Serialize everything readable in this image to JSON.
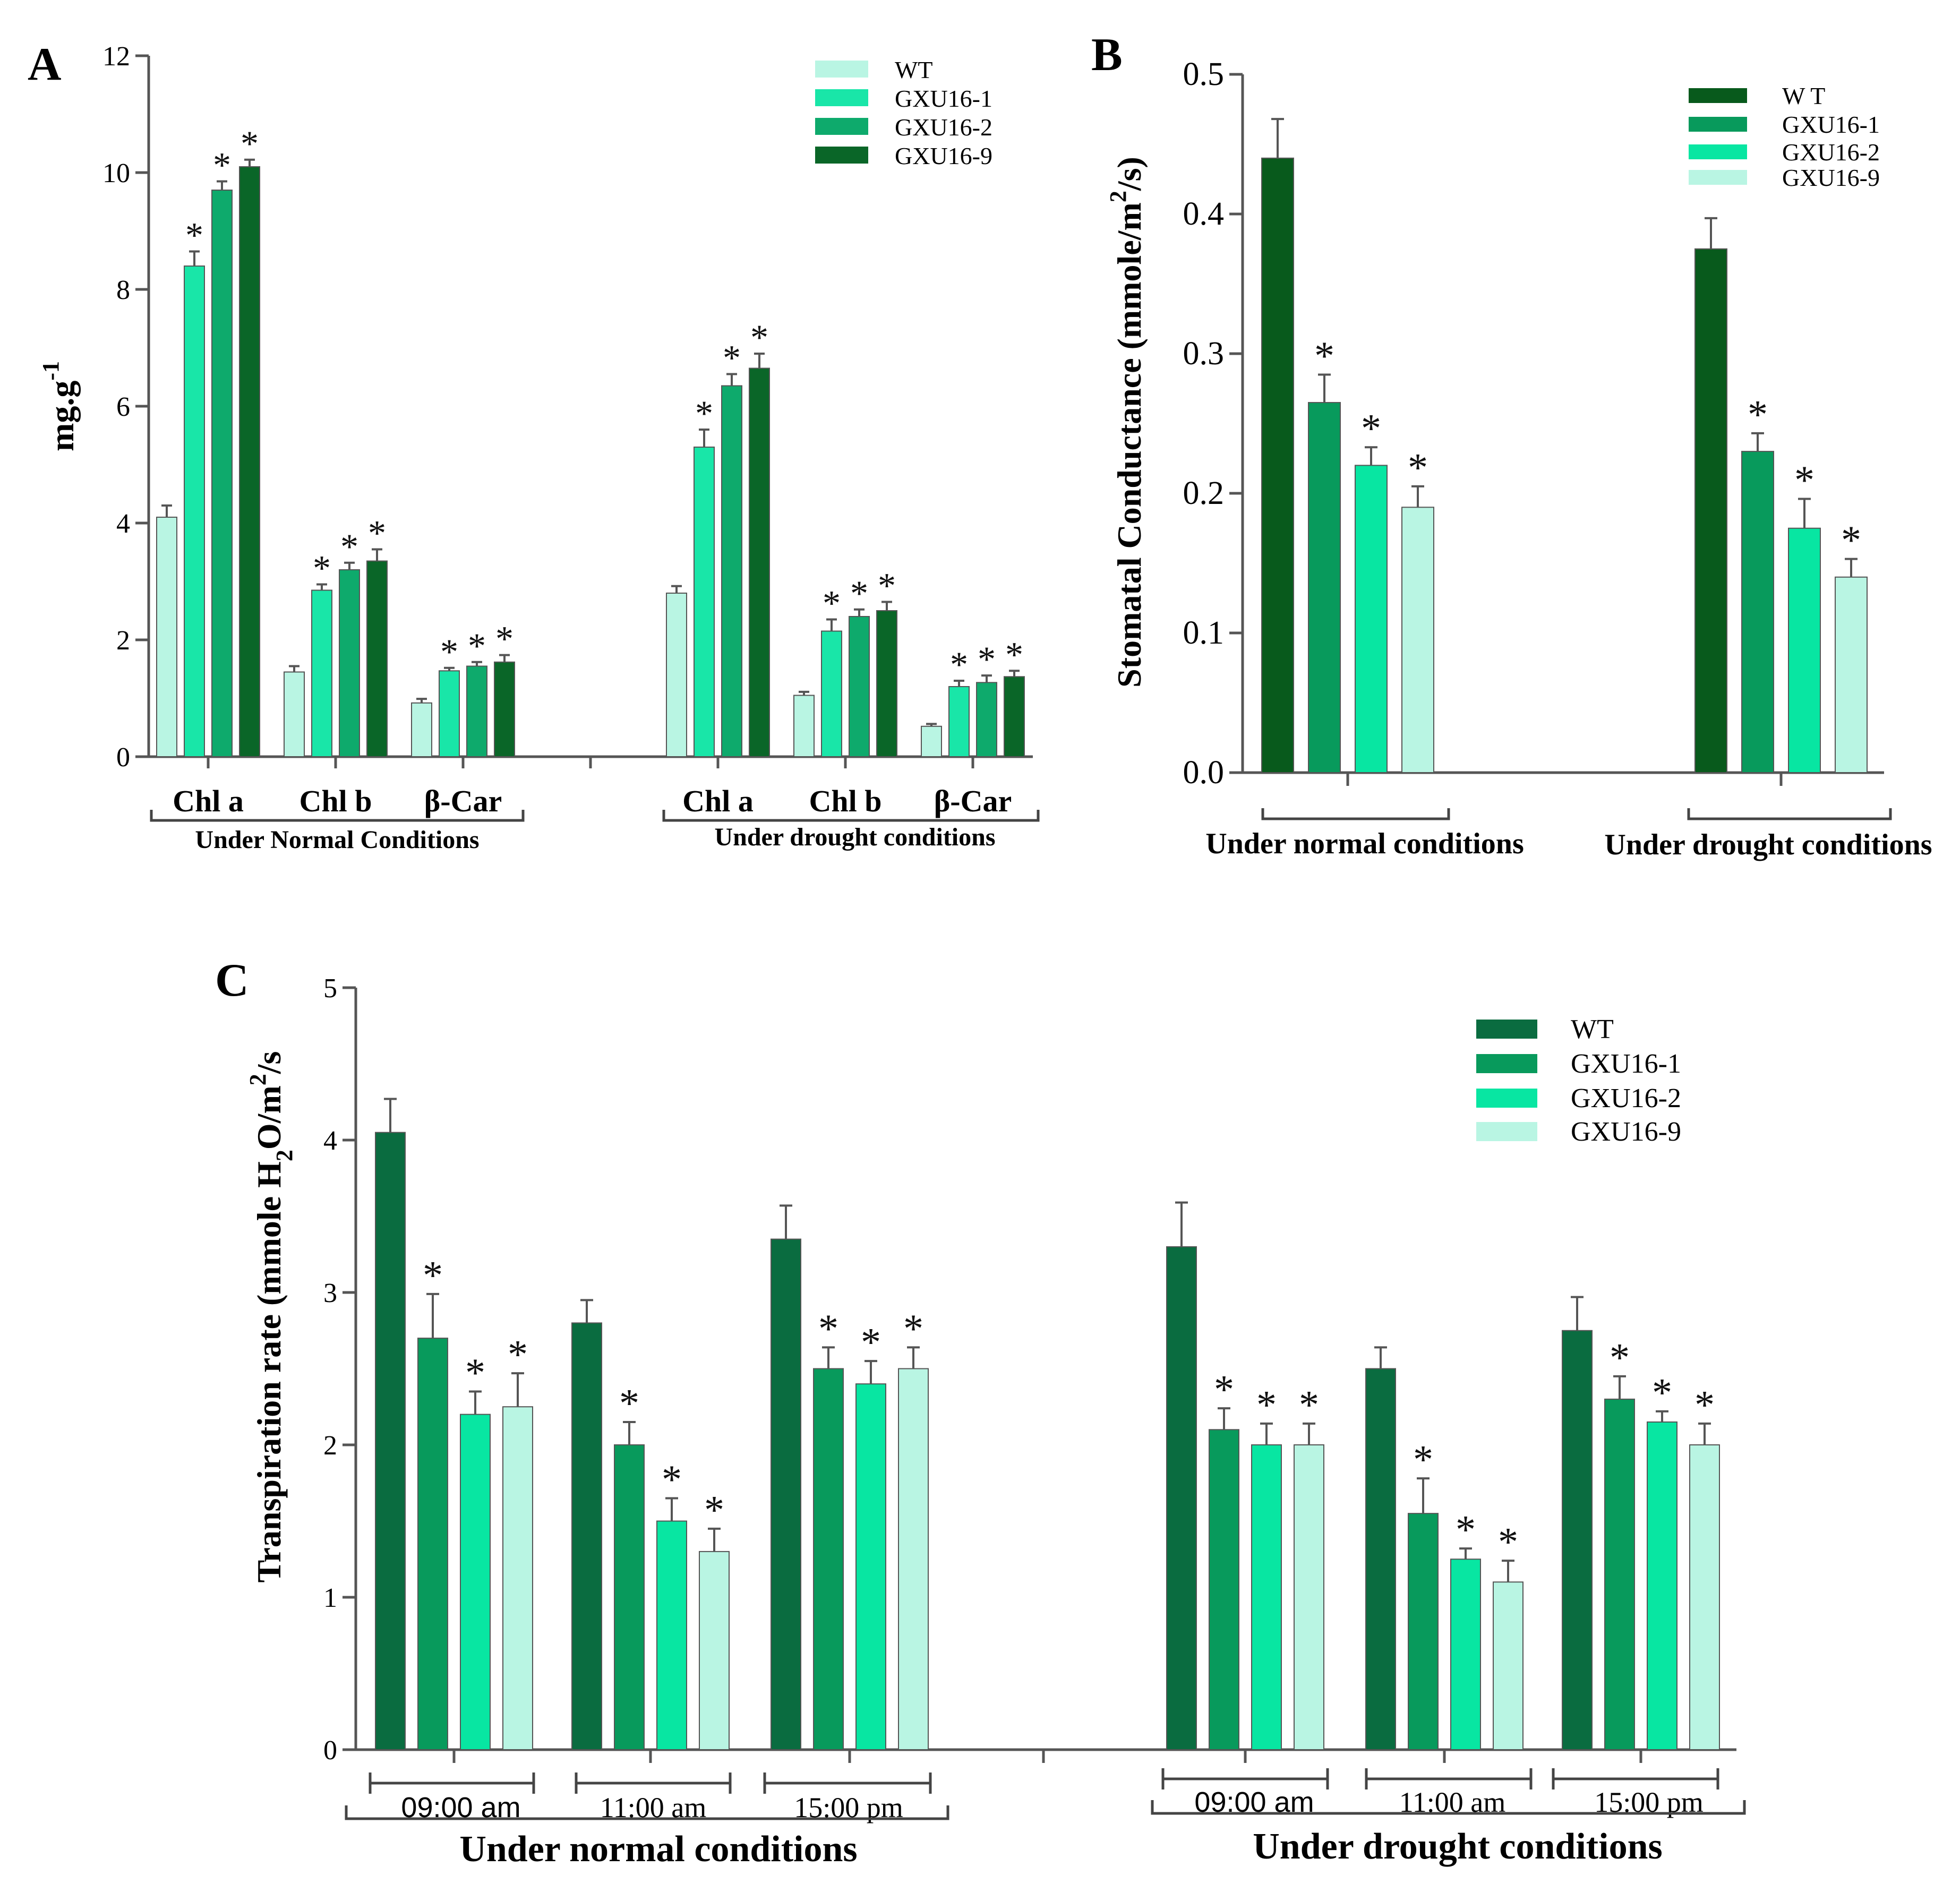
{
  "colors": {
    "wt_A": "#b9f5e3",
    "g1_A": "#19e6a8",
    "g2_A": "#0eaa6c",
    "g9_A": "#0a6628",
    "dark": "#085a1c",
    "mid": "#089a5c",
    "bright": "#08e6a2",
    "pale": "#b9f5e3",
    "wt_C": "#0a6c40"
  },
  "panels": [
    {
      "panel_label": "A",
      "ylabel": "mg.g",
      "ylabel_sup": "-1",
      "yticks": [
        "0",
        "2",
        "4",
        "6",
        "8",
        "10",
        "12"
      ],
      "legend": [
        "WT",
        "GXU16-1",
        "GXU16-2",
        "GXU16-9"
      ],
      "subgroups": [
        "Chl a",
        "Chl b",
        "β-Car",
        "Chl a",
        "Chl b",
        "β-Car"
      ],
      "groups": [
        "Under Normal Conditions",
        "Under drought conditions"
      ]
    },
    {
      "panel_label": "B",
      "ylabel": "Stomatal Conductance (mmole/m",
      "ylabel_sup": "2",
      "ylabel_tail": "/s)",
      "yticks": [
        "0.0",
        "0.1",
        "0.2",
        "0.3",
        "0.4",
        "0.5"
      ],
      "legend": [
        "W T",
        "GXU16-1",
        "GXU16-2",
        "GXU16-9"
      ],
      "groups": [
        "Under normal conditions",
        "Under drought conditions"
      ]
    },
    {
      "panel_label": "C",
      "ylabel": "Transpiration rate (mmole H",
      "ylabel_sub": "2",
      "ylabel_mid": "O/m",
      "ylabel_sup": "2",
      "ylabel_tail": "/s",
      "yticks": [
        "0",
        "1",
        "2",
        "3",
        "4",
        "5"
      ],
      "legend": [
        "WT",
        "GXU16-1",
        "GXU16-2",
        "GXU16-9"
      ],
      "subgroups": [
        "09:00 am",
        "11:00 am",
        "15:00 pm",
        "09:00 am",
        "11:00 am",
        "15:00 pm"
      ],
      "groups": [
        "Under normal conditions",
        "Under drought conditions"
      ]
    }
  ],
  "chart_data": [
    {
      "type": "bar",
      "ylim": [
        0,
        12
      ],
      "categories": [
        "Chl a (Under Normal Conditions)",
        "Chl b (Under Normal Conditions)",
        "β-Car (Under Normal Conditions)",
        "Chl a (Under drought conditions)",
        "Chl b (Under drought conditions)",
        "β-Car (Under drought conditions)"
      ],
      "series": [
        {
          "name": "WT",
          "values": [
            4.1,
            1.45,
            0.92,
            2.8,
            1.05,
            0.52
          ],
          "errors": [
            0.2,
            0.1,
            0.07,
            0.12,
            0.06,
            0.04
          ]
        },
        {
          "name": "GXU16-1",
          "values": [
            8.4,
            2.85,
            1.47,
            5.3,
            2.15,
            1.2
          ],
          "errors": [
            0.25,
            0.1,
            0.05,
            0.3,
            0.2,
            0.1
          ]
        },
        {
          "name": "GXU16-2",
          "values": [
            9.7,
            3.2,
            1.55,
            6.35,
            2.4,
            1.27
          ],
          "errors": [
            0.15,
            0.12,
            0.07,
            0.2,
            0.12,
            0.12
          ]
        },
        {
          "name": "GXU16-9",
          "values": [
            10.1,
            3.35,
            1.62,
            6.65,
            2.5,
            1.37
          ],
          "errors": [
            0.12,
            0.2,
            0.12,
            0.25,
            0.15,
            0.1
          ]
        }
      ],
      "significant": [
        "",
        "*",
        "*",
        "*"
      ]
    },
    {
      "type": "bar",
      "ylim": [
        0,
        0.5
      ],
      "categories": [
        "Under normal conditions",
        "Under drought conditions"
      ],
      "series": [
        {
          "name": "W T",
          "values": [
            0.44,
            0.375
          ],
          "errors": [
            0.028,
            0.022
          ]
        },
        {
          "name": "GXU16-1",
          "values": [
            0.265,
            0.23
          ],
          "errors": [
            0.02,
            0.013
          ]
        },
        {
          "name": "GXU16-2",
          "values": [
            0.22,
            0.175
          ],
          "errors": [
            0.013,
            0.021
          ]
        },
        {
          "name": "GXU16-9",
          "values": [
            0.19,
            0.14
          ],
          "errors": [
            0.015,
            0.013
          ]
        }
      ],
      "significant": [
        "",
        "*",
        "*",
        "*"
      ]
    },
    {
      "type": "bar",
      "ylim": [
        0,
        5
      ],
      "categories": [
        "09:00 am (Under normal conditions)",
        "11:00 am (Under normal conditions)",
        "15:00 pm (Under normal conditions)",
        "09:00 am (Under drought conditions)",
        "11:00 am (Under drought conditions)",
        "15:00 pm (Under drought conditions)"
      ],
      "series": [
        {
          "name": "WT",
          "values": [
            4.05,
            2.8,
            3.35,
            3.3,
            2.5,
            2.75
          ],
          "errors": [
            0.22,
            0.15,
            0.22,
            0.29,
            0.14,
            0.22
          ]
        },
        {
          "name": "GXU16-1",
          "values": [
            2.7,
            2.0,
            2.5,
            2.1,
            1.55,
            2.3
          ],
          "errors": [
            0.29,
            0.15,
            0.14,
            0.14,
            0.23,
            0.15
          ]
        },
        {
          "name": "GXU16-2",
          "values": [
            2.2,
            1.5,
            2.4,
            2.0,
            1.25,
            2.15
          ],
          "errors": [
            0.15,
            0.15,
            0.15,
            0.14,
            0.07,
            0.07
          ]
        },
        {
          "name": "GXU16-9",
          "values": [
            2.25,
            1.3,
            2.5,
            2.0,
            1.1,
            2.0
          ],
          "errors": [
            0.22,
            0.15,
            0.14,
            0.14,
            0.14,
            0.14
          ]
        }
      ],
      "significant": [
        "",
        "*",
        "*",
        "*"
      ]
    }
  ]
}
